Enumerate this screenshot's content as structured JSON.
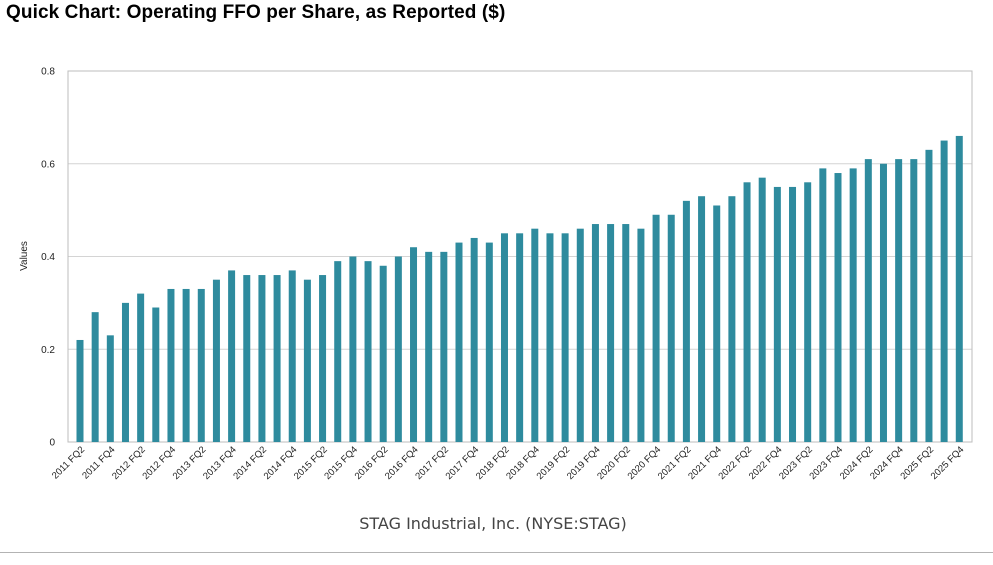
{
  "page": {
    "title": "Quick Chart: Operating FFO per Share, as Reported ($)"
  },
  "chart_data": {
    "type": "bar",
    "title": "Quick Chart: Operating FFO per Share, as Reported ($)",
    "subtitle": "STAG Industrial, Inc. (NYSE:STAG)",
    "xlabel": "",
    "ylabel": "Values",
    "ylim": [
      0,
      0.8
    ],
    "yticks": [
      0,
      0.2,
      0.4,
      0.6,
      0.8
    ],
    "ytick_labels": [
      "0",
      "0.2",
      "0.4",
      "0.6",
      "0.8"
    ],
    "grid": true,
    "bar_color": "#2E8B9E",
    "x_tick_labels": [
      "2011 FQ2",
      "2011 FQ4",
      "2012 FQ2",
      "2012 FQ4",
      "2013 FQ2",
      "2013 FQ4",
      "2014 FQ2",
      "2014 FQ4",
      "2015 FQ2",
      "2015 FQ4",
      "2016 FQ2",
      "2016 FQ4",
      "2017 FQ2",
      "2017 FQ4",
      "2018 FQ2",
      "2018 FQ4",
      "2019 FQ2",
      "2019 FQ4",
      "2020 FQ2",
      "2020 FQ4",
      "2021 FQ2",
      "2021 FQ4",
      "2022 FQ2",
      "2022 FQ4",
      "2023 FQ2",
      "2023 FQ4",
      "2024 FQ2",
      "2024 FQ4",
      "2025 FQ2",
      "2025 FQ4"
    ],
    "categories": [
      "2011 FQ2",
      "2011 FQ3",
      "2011 FQ4",
      "2012 FQ1",
      "2012 FQ2",
      "2012 FQ3",
      "2012 FQ4",
      "2013 FQ1",
      "2013 FQ2",
      "2013 FQ3",
      "2013 FQ4",
      "2014 FQ1",
      "2014 FQ2",
      "2014 FQ3",
      "2014 FQ4",
      "2015 FQ1",
      "2015 FQ2",
      "2015 FQ3",
      "2015 FQ4",
      "2016 FQ1",
      "2016 FQ2",
      "2016 FQ3",
      "2016 FQ4",
      "2017 FQ1",
      "2017 FQ2",
      "2017 FQ3",
      "2017 FQ4",
      "2018 FQ1",
      "2018 FQ2",
      "2018 FQ3",
      "2018 FQ4",
      "2019 FQ1",
      "2019 FQ2",
      "2019 FQ3",
      "2019 FQ4",
      "2020 FQ1",
      "2020 FQ2",
      "2020 FQ3",
      "2020 FQ4",
      "2021 FQ1",
      "2021 FQ2",
      "2021 FQ3",
      "2021 FQ4",
      "2022 FQ1",
      "2022 FQ2",
      "2022 FQ3",
      "2022 FQ4",
      "2023 FQ1",
      "2023 FQ2",
      "2023 FQ3",
      "2023 FQ4",
      "2024 FQ1",
      "2024 FQ2",
      "2024 FQ3",
      "2024 FQ4",
      "2025 FQ1",
      "2025 FQ2",
      "2025 FQ3",
      "2025 FQ4"
    ],
    "values": [
      0.22,
      0.28,
      0.23,
      0.3,
      0.32,
      0.29,
      0.33,
      0.33,
      0.33,
      0.35,
      0.37,
      0.36,
      0.36,
      0.36,
      0.37,
      0.35,
      0.36,
      0.39,
      0.4,
      0.39,
      0.38,
      0.4,
      0.42,
      0.41,
      0.41,
      0.43,
      0.44,
      0.43,
      0.45,
      0.45,
      0.46,
      0.45,
      0.45,
      0.46,
      0.47,
      0.47,
      0.47,
      0.46,
      0.49,
      0.49,
      0.52,
      0.53,
      0.51,
      0.53,
      0.56,
      0.57,
      0.55,
      0.55,
      0.56,
      0.59,
      0.58,
      0.59,
      0.61,
      0.6,
      0.61,
      0.61,
      0.63,
      0.65,
      0.66
    ]
  }
}
